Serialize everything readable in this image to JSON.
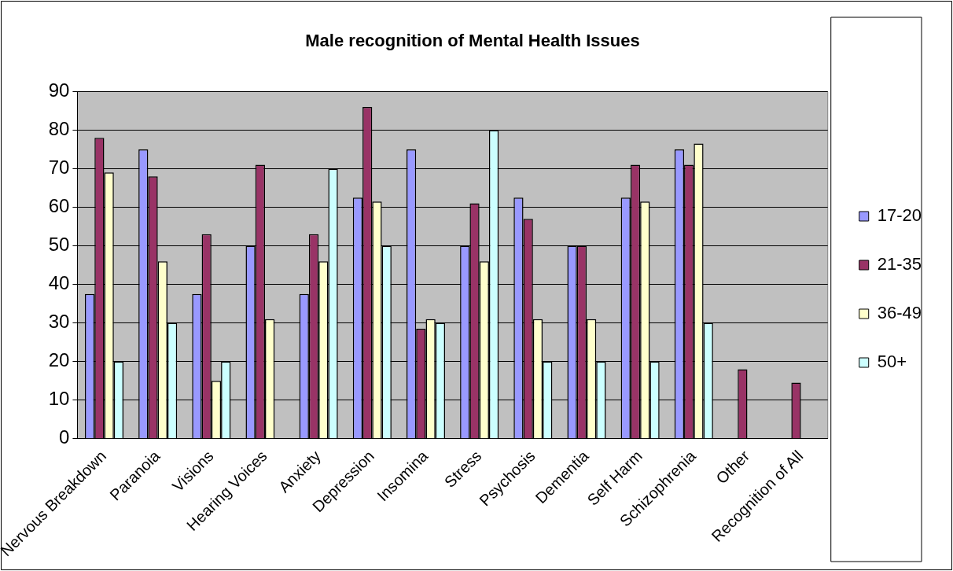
{
  "chart_data": {
    "type": "bar",
    "title": "Male recognition of Mental Health Issues",
    "categories": [
      "Nervous Breakdown",
      "Paranoia",
      "Visions",
      "Hearing Voices",
      "Anxiety",
      "Depression",
      "Insomina",
      "Stress",
      "Psychosis",
      "Dementia",
      "Self Harm",
      "Schizophrenia",
      "Other",
      "Recognition of All"
    ],
    "series": [
      {
        "name": "17-20",
        "color": "#9999ff",
        "values": [
          37.5,
          75,
          37.5,
          50,
          37.5,
          62.5,
          75,
          50,
          62.5,
          50,
          62.5,
          75,
          null,
          null
        ]
      },
      {
        "name": "21-35",
        "color": "#993366",
        "values": [
          78,
          68,
          53,
          71,
          53,
          86,
          28.5,
          61,
          57,
          50,
          71,
          71,
          18,
          14.5
        ]
      },
      {
        "name": "36-49",
        "color": "#ffffcc",
        "values": [
          69,
          46,
          15,
          31,
          46,
          61.5,
          31,
          46,
          31,
          31,
          61.5,
          76.5,
          null,
          null
        ]
      },
      {
        "name": "50+",
        "color": "#ccffff",
        "values": [
          20,
          30,
          20,
          null,
          70,
          50,
          30,
          80,
          20,
          20,
          20,
          30,
          null,
          null
        ]
      }
    ],
    "ylim": [
      0,
      90
    ],
    "yticks": [
      0,
      10,
      20,
      30,
      40,
      50,
      60,
      70,
      80,
      90
    ],
    "grid": "y",
    "legend": "right"
  }
}
